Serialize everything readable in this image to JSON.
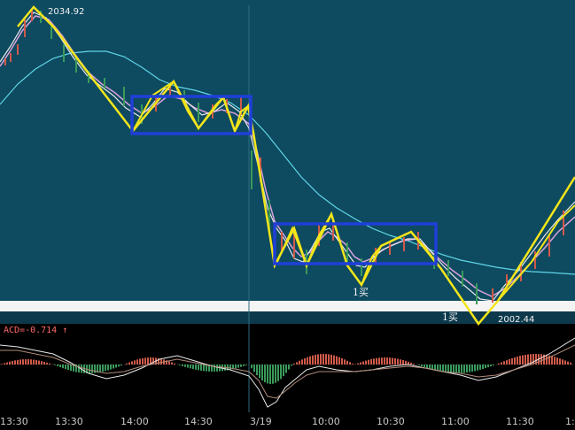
{
  "chart": {
    "high_price_label": "2034.92",
    "low_price_label": "2002.44",
    "macd_label": "ACD=-0.714 ↑",
    "buy_marks": [
      "1买",
      "1买"
    ],
    "date_marker": "3/19"
  },
  "time_axis": {
    "labels": [
      "13:30",
      "13:30",
      "14:00",
      "14:30",
      "3/19",
      "10:00",
      "10:30",
      "11:00",
      "11:30",
      "1:"
    ]
  },
  "colors": {
    "background": "#0e4a60",
    "zigzag": "#f2e51b",
    "box": "#1f3fd8",
    "ma_white": "#e8e8e8",
    "ma_pink": "#d9a0d9",
    "ma_cyan": "#5fd6e6",
    "bar_up": "#d05a4a",
    "bar_down": "#3a9a5a"
  },
  "chart_data": {
    "type": "line",
    "title": "",
    "price_high": 2034.92,
    "price_low": 2002.44,
    "macd_value": -0.714
  }
}
